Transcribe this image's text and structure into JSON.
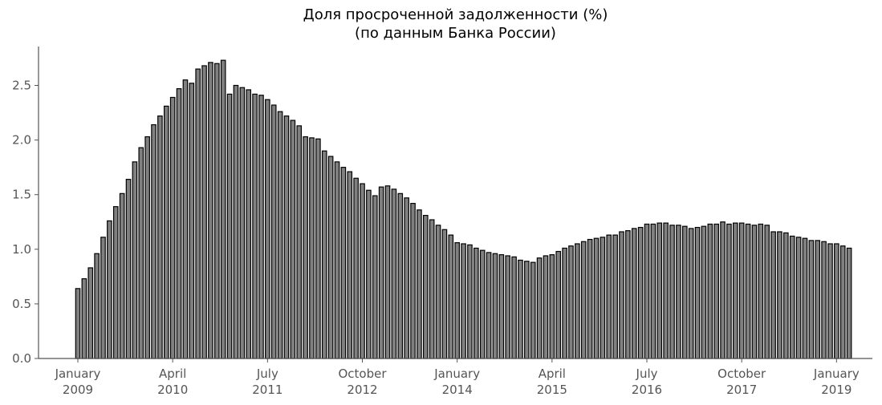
{
  "chart_data": {
    "type": "bar",
    "title": "Доля просроченной задолженности (%)",
    "subtitle": "(по данным Банка России)",
    "xlabel": "",
    "ylabel": "",
    "ylim": [
      0,
      2.8
    ],
    "yticks": [
      "0.0",
      "0.5",
      "1.0",
      "1.5",
      "2.0",
      "2.5"
    ],
    "xticks": [
      {
        "line1": "January",
        "line2": "2009",
        "index": 0
      },
      {
        "line1": "April",
        "line2": "2010",
        "index": 15
      },
      {
        "line1": "July",
        "line2": "2011",
        "index": 30
      },
      {
        "line1": "October",
        "line2": "2012",
        "index": 45
      },
      {
        "line1": "January",
        "line2": "2014",
        "index": 60
      },
      {
        "line1": "April",
        "line2": "2015",
        "index": 75
      },
      {
        "line1": "July",
        "line2": "2016",
        "index": 90
      },
      {
        "line1": "October",
        "line2": "2017",
        "index": 105
      },
      {
        "line1": "January",
        "line2": "2019",
        "index": 120
      }
    ],
    "start": "2009-01",
    "frequency": "monthly",
    "bar_color": "#808080",
    "edge_color": "#000000",
    "grid": false,
    "values": [
      0.64,
      0.73,
      0.83,
      0.96,
      1.11,
      1.26,
      1.39,
      1.51,
      1.64,
      1.8,
      1.93,
      2.03,
      2.14,
      2.22,
      2.31,
      2.39,
      2.47,
      2.55,
      2.52,
      2.65,
      2.68,
      2.71,
      2.7,
      2.73,
      2.42,
      2.5,
      2.48,
      2.46,
      2.42,
      2.41,
      2.37,
      2.32,
      2.26,
      2.22,
      2.18,
      2.13,
      2.03,
      2.02,
      2.01,
      1.9,
      1.85,
      1.8,
      1.75,
      1.71,
      1.65,
      1.6,
      1.54,
      1.49,
      1.57,
      1.58,
      1.55,
      1.51,
      1.47,
      1.42,
      1.36,
      1.31,
      1.27,
      1.22,
      1.18,
      1.13,
      1.06,
      1.05,
      1.04,
      1.01,
      0.99,
      0.97,
      0.96,
      0.95,
      0.94,
      0.93,
      0.9,
      0.89,
      0.88,
      0.92,
      0.94,
      0.95,
      0.98,
      1.01,
      1.03,
      1.05,
      1.07,
      1.09,
      1.1,
      1.11,
      1.13,
      1.13,
      1.16,
      1.17,
      1.19,
      1.2,
      1.23,
      1.23,
      1.24,
      1.24,
      1.22,
      1.22,
      1.21,
      1.19,
      1.2,
      1.21,
      1.23,
      1.23,
      1.25,
      1.23,
      1.24,
      1.24,
      1.23,
      1.22,
      1.23,
      1.22,
      1.16,
      1.16,
      1.15,
      1.12,
      1.11,
      1.1,
      1.08,
      1.08,
      1.07,
      1.05,
      1.05,
      1.03,
      1.01
    ]
  }
}
